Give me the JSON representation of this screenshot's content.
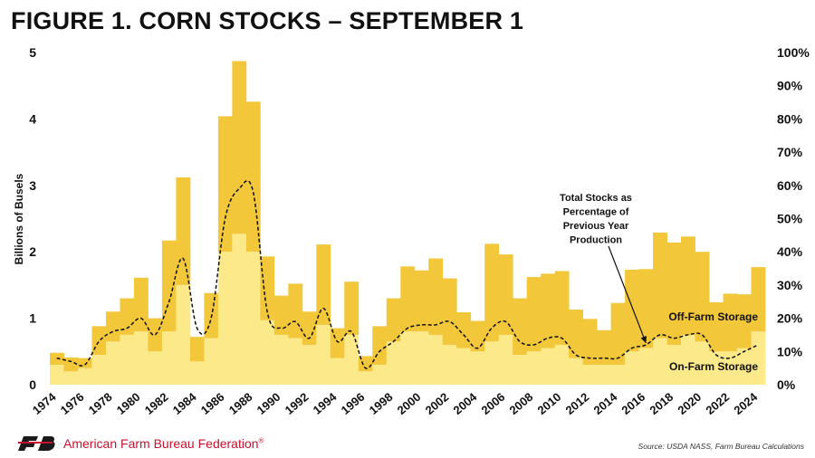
{
  "title": "FIGURE 1. CORN STOCKS – SEPTEMBER 1",
  "footer": {
    "org_name": "American Farm Bureau Federation",
    "org_mark": "®",
    "source": "Source: USDA NASS, Farm Bureau Calculations"
  },
  "colors": {
    "off_farm": "#F2C73A",
    "on_farm": "#FCE98A",
    "brand": "#C8102E"
  },
  "chart_data": {
    "type": "bar",
    "stacked": true,
    "ylabel": "Billions of Busels",
    "ylim": [
      0,
      5
    ],
    "yticks": [
      "0",
      "1",
      "2",
      "3",
      "4",
      "5"
    ],
    "y2lim": [
      0,
      100
    ],
    "y2ticks": [
      "0%",
      "10%",
      "20%",
      "30%",
      "40%",
      "50%",
      "60%",
      "70%",
      "80%",
      "90%",
      "100%"
    ],
    "xtick_labels": [
      "1974",
      "1976",
      "1978",
      "1980",
      "1982",
      "1984",
      "1986",
      "1988",
      "1990",
      "1992",
      "1994",
      "1996",
      "1998",
      "2000",
      "2002",
      "2004",
      "2006",
      "2008",
      "2010",
      "2012",
      "2014",
      "2016",
      "2018",
      "2020",
      "2022",
      "2024"
    ],
    "categories": [
      "1974",
      "1975",
      "1976",
      "1977",
      "1978",
      "1979",
      "1980",
      "1981",
      "1982",
      "1983",
      "1984",
      "1985",
      "1986",
      "1987",
      "1988",
      "1989",
      "1990",
      "1991",
      "1992",
      "1993",
      "1994",
      "1995",
      "1996",
      "1997",
      "1998",
      "1999",
      "2000",
      "2001",
      "2002",
      "2003",
      "2004",
      "2005",
      "2006",
      "2007",
      "2008",
      "2009",
      "2010",
      "2011",
      "2012",
      "2013",
      "2014",
      "2015",
      "2016",
      "2017",
      "2018",
      "2019",
      "2020",
      "2021",
      "2022",
      "2023",
      "2024"
    ],
    "series": [
      {
        "name": "On-Farm Storage",
        "type": "bar",
        "values": [
          0.3,
          0.2,
          0.25,
          0.45,
          0.65,
          0.75,
          0.8,
          0.5,
          0.8,
          1.5,
          0.35,
          0.7,
          2.0,
          2.27,
          2.0,
          0.97,
          0.75,
          0.7,
          0.6,
          0.9,
          0.4,
          0.75,
          0.2,
          0.3,
          0.65,
          0.8,
          0.8,
          0.75,
          0.6,
          0.55,
          0.5,
          0.65,
          0.75,
          0.45,
          0.5,
          0.55,
          0.6,
          0.4,
          0.3,
          0.3,
          0.3,
          0.5,
          0.55,
          0.7,
          0.6,
          0.75,
          0.65,
          0.5,
          0.5,
          0.55,
          0.8
        ]
      },
      {
        "name": "Off-Farm Storage",
        "type": "bar",
        "values": [
          0.18,
          0.21,
          0.15,
          0.43,
          0.45,
          0.55,
          0.81,
          0.5,
          1.37,
          1.62,
          0.37,
          0.68,
          2.04,
          2.6,
          2.26,
          0.96,
          0.59,
          0.82,
          0.5,
          1.21,
          0.45,
          0.8,
          0.23,
          0.58,
          0.65,
          0.98,
          0.92,
          1.15,
          1.0,
          0.54,
          0.46,
          1.47,
          1.21,
          0.85,
          1.12,
          1.12,
          1.11,
          0.73,
          0.69,
          0.52,
          0.93,
          1.23,
          1.19,
          1.59,
          1.54,
          1.48,
          1.35,
          0.74,
          0.87,
          0.81,
          0.97
        ]
      },
      {
        "name": "Total Stocks as Percentage of Previous Year Production",
        "type": "line",
        "axis": "right",
        "values": [
          8,
          7,
          6,
          13,
          16,
          17,
          20,
          15,
          25,
          38,
          17,
          20,
          50,
          59,
          58,
          22,
          17,
          19,
          14,
          23,
          13,
          16,
          5,
          10,
          13,
          17,
          18,
          18,
          19,
          15,
          11,
          17,
          19,
          13,
          12,
          14,
          14,
          9,
          8,
          8,
          8,
          11,
          12,
          15,
          14,
          15,
          15,
          9,
          8,
          10,
          12
        ]
      }
    ],
    "annotations": [
      "Total Stocks as",
      "Percentage of",
      "Previous Year",
      "Production"
    ],
    "series_labels": [
      "Off-Farm Storage",
      "On-Farm Storage"
    ],
    "legend": "none",
    "grid": false
  }
}
